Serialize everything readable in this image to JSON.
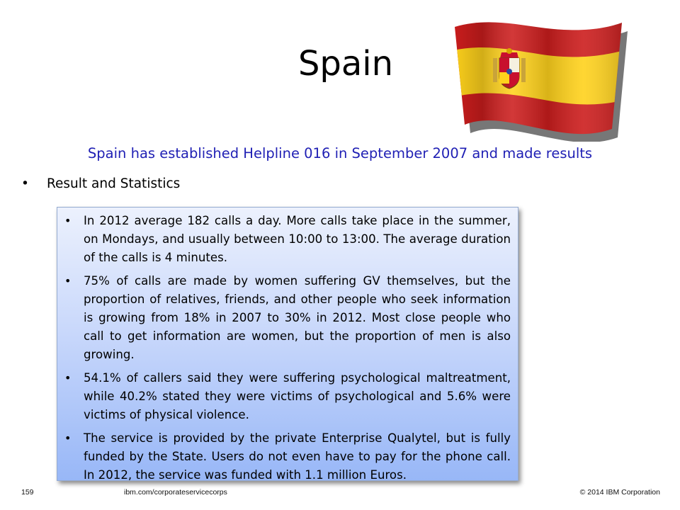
{
  "slide": {
    "title": "Spain",
    "subtitle": "Spain has established Helpline 016 in September 2007 and made results",
    "main_bullet": "Result and Statistics",
    "stats": [
      "In 2012 average 182 calls a day. More calls take place in the summer, on Mondays, and usually between  10:00 to 13:00. The average duration of the calls is 4 minutes.",
      "75% of calls are made by women suffering GV themselves, but the proportion of relatives, friends, and other people who seek information is growing from 18% in 2007 to 30% in 2012. Most close people who call to get information are women, but the proportion of men is also growing.",
      "54.1% of callers said they were suffering psychological maltreatment, while 40.2% stated they were victims of psychological and 5.6% were victims of physical violence.",
      "The service is provided by the private Enterprise Qualytel, but is fully funded by the State. Users do not even have to pay for the phone call. In 2012, the service was funded with 1.1 million Euros."
    ],
    "bullet_glyph": "•",
    "flag_icon": "spain-flag-icon"
  },
  "footer": {
    "page_number": "159",
    "url": "ibm.com/corporateservicecorps",
    "copyright": "© 2014 IBM  Corporation"
  },
  "colors": {
    "subtitle": "#1f1fb4",
    "flag_red": "#cc1d1d",
    "flag_yellow": "#ffd21c",
    "box_top": "#ecf1fd",
    "box_bottom": "#98b7f7"
  }
}
